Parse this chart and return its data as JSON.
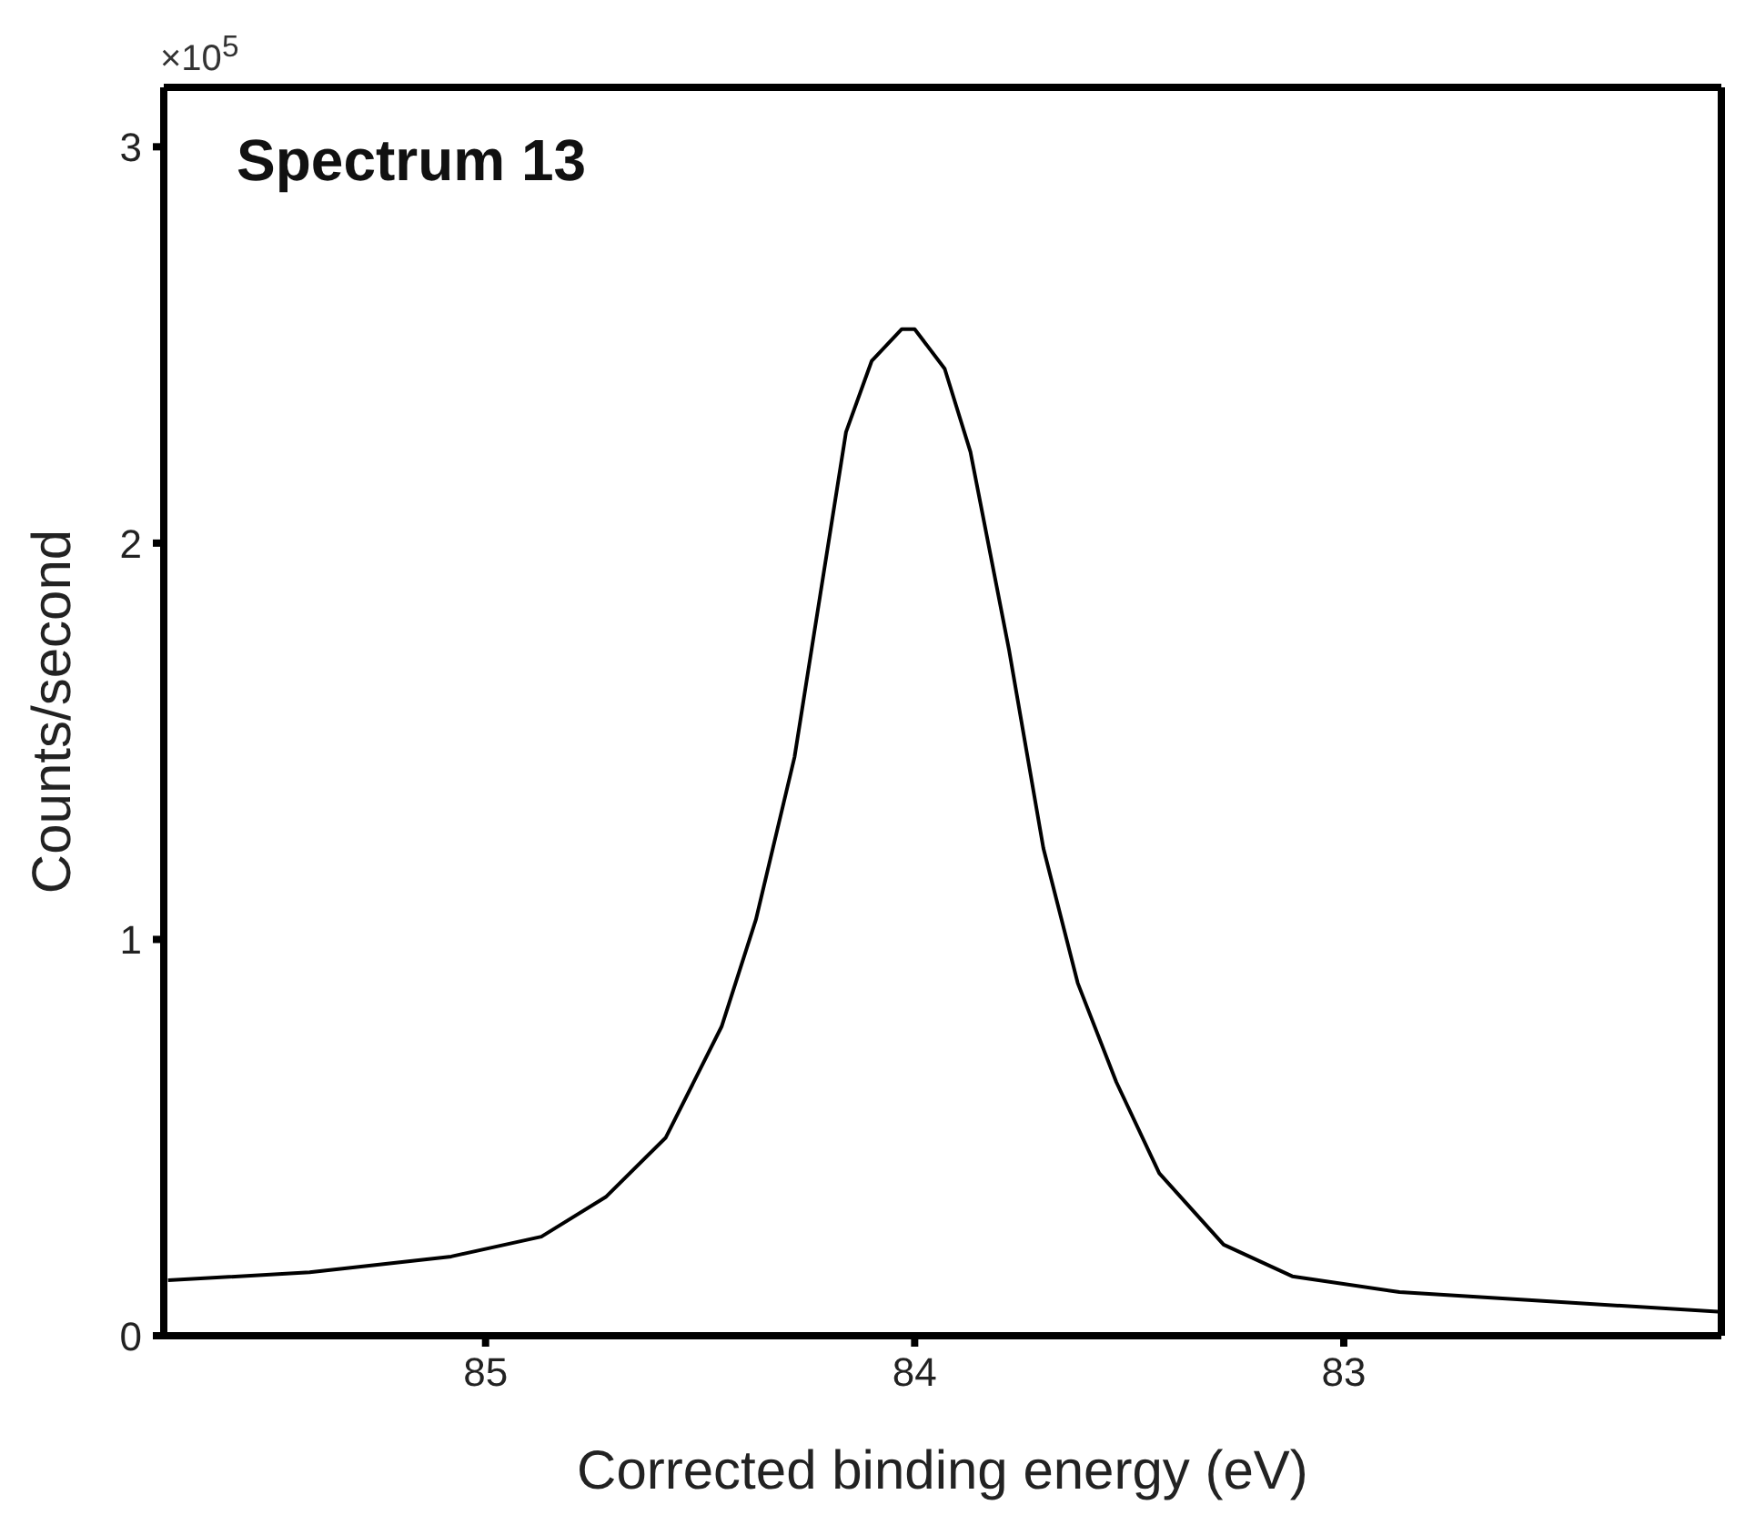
{
  "chart_data": {
    "type": "line",
    "title": "Spectrum 13",
    "xlabel": "Corrected binding energy (eV)",
    "ylabel": "Counts/second",
    "annotations": [
      "×10$^{5}$"
    ],
    "x": [
      85.74,
      85.41,
      85.08,
      84.87,
      84.72,
      84.58,
      84.45,
      84.37,
      84.28,
      84.22,
      84.16,
      84.1,
      84.03,
      84.0,
      83.93,
      83.87,
      83.78,
      83.7,
      83.62,
      83.53,
      83.43,
      83.28,
      83.12,
      82.87,
      82.57,
      82.12
    ],
    "series": [
      {
        "color": "#000000",
        "values": [
          0.14,
          0.16,
          0.2,
          0.25,
          0.35,
          0.5,
          0.78,
          1.05,
          1.46,
          1.87,
          2.28,
          2.46,
          2.54,
          2.54,
          2.44,
          2.23,
          1.73,
          1.23,
          0.89,
          0.64,
          0.41,
          0.23,
          0.15,
          0.11,
          0.09,
          0.06
        ]
      }
    ],
    "xlim": [
      85.75,
      82.12
    ],
    "xticks": [
      85,
      84,
      83
    ],
    "ylim": [
      0,
      3.15
    ],
    "yticks": [
      0,
      1,
      2,
      3
    ],
    "grid": false,
    "legend": false,
    "marker": "none",
    "line_style": "solid"
  }
}
